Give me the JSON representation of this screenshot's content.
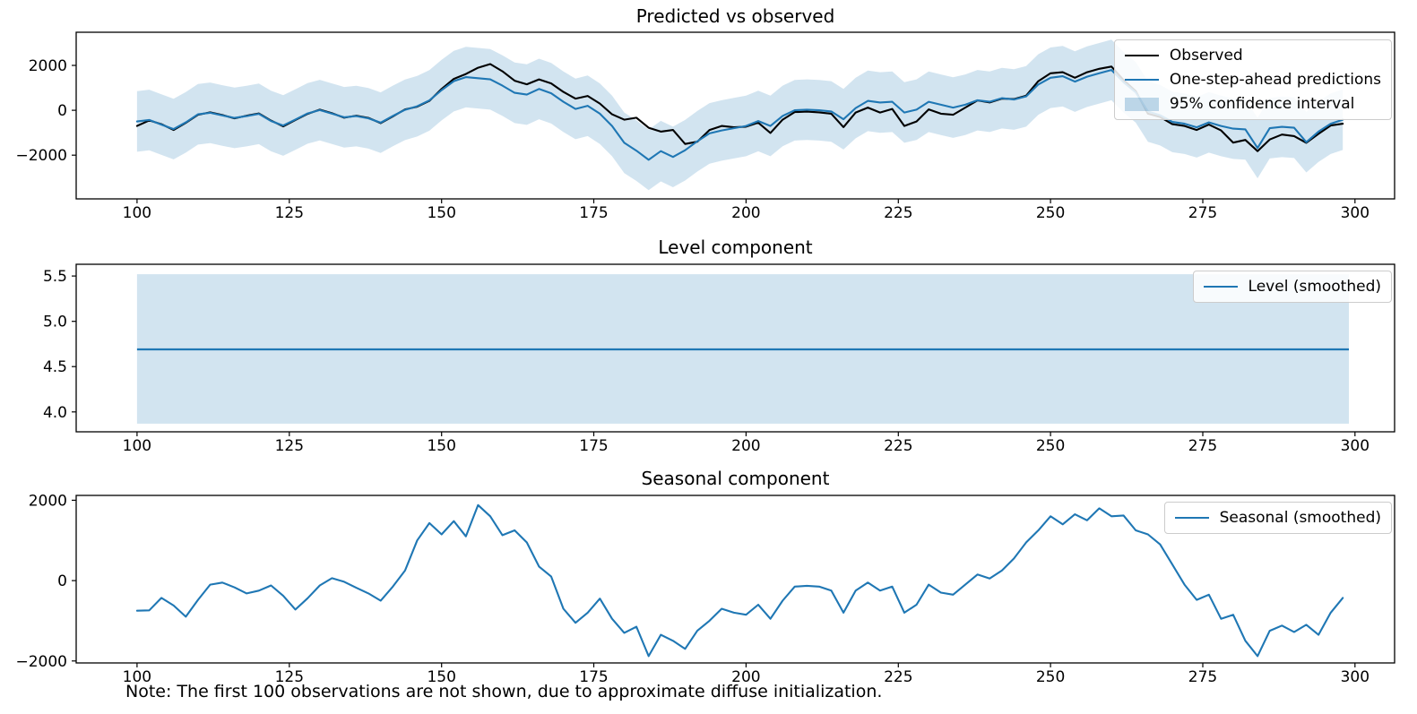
{
  "figure": {
    "background": "#ffffff",
    "accent_color": "#1f77b4",
    "observed_color": "#000000",
    "band_fill": "rgba(31,119,180,0.2)",
    "note": "Note: The first 100 observations are not shown, due to approximate diffuse initialization."
  },
  "chart_data": [
    {
      "id": "predicted-vs-observed",
      "type": "line",
      "title": "Predicted vs observed",
      "xlim": [
        90,
        306.5
      ],
      "ylim": [
        -3950,
        3480
      ],
      "xticks": [
        100,
        125,
        150,
        175,
        200,
        225,
        250,
        275,
        300
      ],
      "yticks": [
        -2000,
        0,
        2000
      ],
      "ytick_decimals": 0,
      "grid": false,
      "legend_position": "top-right",
      "legend": [
        {
          "label": "Observed",
          "color": "#000000",
          "kind": "line"
        },
        {
          "label": "One-step-ahead predictions",
          "color": "#1f77b4",
          "kind": "line"
        },
        {
          "label": "95% confidence interval",
          "color": "rgba(31,119,180,0.28)",
          "kind": "patch"
        }
      ],
      "x_start": 100,
      "x_step": 2,
      "series": [
        {
          "name": "Observed",
          "color": "#000000",
          "values": [
            -700,
            -450,
            -620,
            -880,
            -560,
            -200,
            -90,
            -210,
            -360,
            -240,
            -140,
            -460,
            -720,
            -430,
            -160,
            30,
            -130,
            -330,
            -240,
            -340,
            -570,
            -270,
            40,
            160,
            420,
            950,
            1400,
            1620,
            1900,
            2060,
            1740,
            1320,
            1160,
            1380,
            1200,
            820,
            520,
            640,
            300,
            -180,
            -420,
            -330,
            -780,
            -950,
            -880,
            -1500,
            -1400,
            -880,
            -700,
            -760,
            -730,
            -550,
            -1010,
            -420,
            -80,
            -60,
            -90,
            -150,
            -750,
            -100,
            120,
            -100,
            60,
            -700,
            -500,
            40,
            -150,
            -200,
            120,
            440,
            350,
            520,
            500,
            650,
            1300,
            1650,
            1700,
            1450,
            1700,
            1850,
            1950,
            1350,
            850,
            -150,
            -300,
            -620,
            -700,
            -880,
            -640,
            -900,
            -1440,
            -1320,
            -1820,
            -1300,
            -1080,
            -1150,
            -1450,
            -1050,
            -680,
            -600
          ]
        },
        {
          "name": "One-step-ahead predictions",
          "color": "#1f77b4",
          "values": [
            -500,
            -430,
            -640,
            -840,
            -540,
            -180,
            -110,
            -230,
            -340,
            -260,
            -160,
            -480,
            -680,
            -410,
            -140,
            10,
            -150,
            -310,
            -260,
            -360,
            -550,
            -250,
            20,
            180,
            440,
            900,
            1300,
            1480,
            1430,
            1380,
            1100,
            780,
            700,
            950,
            760,
            380,
            60,
            200,
            -150,
            -700,
            -1450,
            -1800,
            -2210,
            -1820,
            -2080,
            -1780,
            -1380,
            -1030,
            -900,
            -800,
            -700,
            -480,
            -700,
            -250,
            0,
            30,
            0,
            -50,
            -400,
            100,
            420,
            350,
            380,
            -100,
            30,
            380,
            250,
            120,
            250,
            450,
            380,
            540,
            480,
            620,
            1150,
            1450,
            1520,
            1280,
            1500,
            1650,
            1800,
            1250,
            800,
            -50,
            -220,
            -520,
            -600,
            -760,
            -540,
            -700,
            -820,
            -850,
            -1680,
            -800,
            -740,
            -780,
            -1420,
            -950,
            -600,
            -420
          ]
        }
      ],
      "band": {
        "name": "95% confidence interval",
        "around": "One-step-ahead predictions",
        "half_width": 1350
      }
    },
    {
      "id": "level-component",
      "type": "line",
      "title": "Level component",
      "xlim": [
        90,
        306.5
      ],
      "ylim": [
        3.78,
        5.63
      ],
      "xticks": [
        100,
        125,
        150,
        175,
        200,
        225,
        250,
        275,
        300
      ],
      "yticks": [
        4.0,
        4.5,
        5.0,
        5.5
      ],
      "ytick_decimals": 1,
      "grid": false,
      "legend_position": "top-right",
      "legend": [
        {
          "label": "Level (smoothed)",
          "color": "#1f77b4",
          "kind": "line"
        }
      ],
      "level": {
        "x_start": 100,
        "x_end": 299,
        "value": 4.69,
        "ci_low": 3.87,
        "ci_high": 5.52
      }
    },
    {
      "id": "seasonal-component",
      "type": "line",
      "title": "Seasonal component",
      "xlim": [
        90,
        306.5
      ],
      "ylim": [
        -2050,
        2120
      ],
      "xticks": [
        100,
        125,
        150,
        175,
        200,
        225,
        250,
        275,
        300
      ],
      "yticks": [
        -2000,
        0,
        2000
      ],
      "ytick_decimals": 0,
      "grid": false,
      "legend_position": "top-right",
      "legend": [
        {
          "label": "Seasonal (smoothed)",
          "color": "#1f77b4",
          "kind": "line"
        }
      ],
      "x_start": 100,
      "x_step": 2,
      "series": [
        {
          "name": "Seasonal (smoothed)",
          "color": "#1f77b4",
          "values": [
            -750,
            -740,
            -430,
            -620,
            -900,
            -480,
            -100,
            -50,
            -170,
            -320,
            -250,
            -120,
            -380,
            -720,
            -440,
            -120,
            60,
            -30,
            -180,
            -320,
            -500,
            -150,
            250,
            1000,
            1430,
            1150,
            1480,
            1100,
            1880,
            1600,
            1130,
            1250,
            950,
            350,
            100,
            -700,
            -1050,
            -800,
            -450,
            -950,
            -1300,
            -1150,
            -1880,
            -1350,
            -1500,
            -1700,
            -1250,
            -1000,
            -700,
            -800,
            -850,
            -600,
            -950,
            -500,
            -150,
            -130,
            -150,
            -250,
            -800,
            -250,
            -50,
            -250,
            -150,
            -800,
            -600,
            -100,
            -300,
            -350,
            -100,
            150,
            50,
            250,
            550,
            950,
            1250,
            1600,
            1400,
            1650,
            1500,
            1800,
            1600,
            1620,
            1250,
            1150,
            900,
            400,
            -100,
            -480,
            -350,
            -950,
            -850,
            -1500,
            -1880,
            -1250,
            -1120,
            -1280,
            -1100,
            -1350,
            -800,
            -430
          ]
        }
      ]
    }
  ]
}
